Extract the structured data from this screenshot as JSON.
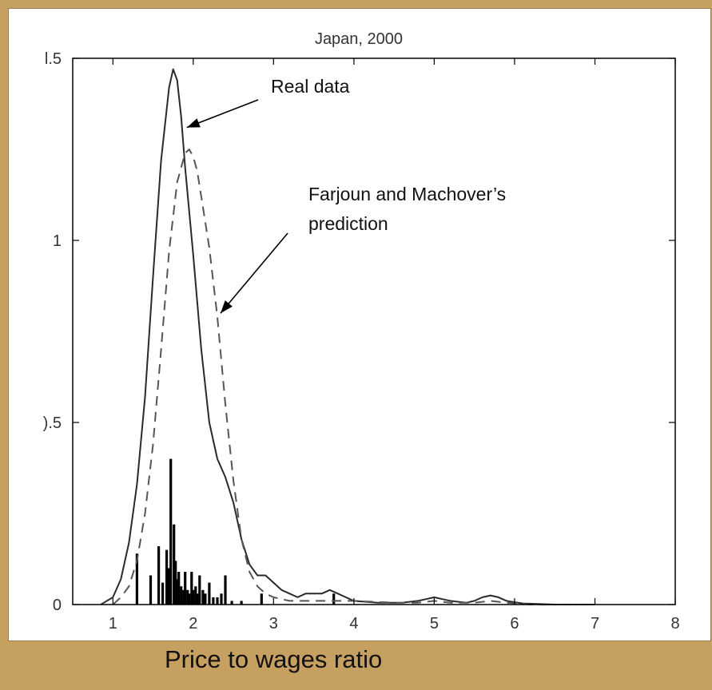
{
  "slide": {
    "background": "#c5a060",
    "caption": "Price to wages ratio"
  },
  "chart_data": {
    "type": "line",
    "title": "Japan, 2000",
    "xlabel": "",
    "ylabel": "",
    "xlim": [
      0.5,
      8
    ],
    "ylim": [
      0,
      1.5
    ],
    "x_ticks": [
      1,
      2,
      3,
      4,
      5,
      6,
      7,
      8
    ],
    "x_tick_labels": [
      "1",
      "2",
      "3",
      "4",
      "5",
      "6",
      "7",
      "8"
    ],
    "y_ticks": [
      0,
      0.5,
      1,
      1.5
    ],
    "y_tick_labels": [
      "0",
      ").5",
      "1",
      "l.5"
    ],
    "grid": false,
    "series": [
      {
        "style": "solid",
        "color": "#2a2a2a",
        "x": [
          0.85,
          1.0,
          1.1,
          1.2,
          1.3,
          1.4,
          1.5,
          1.6,
          1.7,
          1.75,
          1.8,
          1.85,
          1.9,
          2.0,
          2.1,
          2.2,
          2.3,
          2.4,
          2.5,
          2.6,
          2.7,
          2.8,
          2.9,
          3.0,
          3.1,
          3.2,
          3.3,
          3.4,
          3.5,
          3.6,
          3.7,
          3.8,
          3.9,
          4.0,
          4.3,
          4.6,
          4.8,
          4.9,
          5.0,
          5.1,
          5.2,
          5.4,
          5.5,
          5.6,
          5.7,
          5.8,
          5.9,
          6.1,
          6.5,
          7.0
        ],
        "values": [
          0.0,
          0.02,
          0.07,
          0.17,
          0.33,
          0.57,
          0.9,
          1.22,
          1.42,
          1.47,
          1.44,
          1.34,
          1.2,
          0.96,
          0.7,
          0.5,
          0.4,
          0.35,
          0.28,
          0.18,
          0.11,
          0.08,
          0.08,
          0.06,
          0.04,
          0.03,
          0.02,
          0.03,
          0.03,
          0.03,
          0.04,
          0.03,
          0.02,
          0.01,
          0.005,
          0.005,
          0.01,
          0.015,
          0.02,
          0.015,
          0.01,
          0.005,
          0.01,
          0.02,
          0.025,
          0.02,
          0.01,
          0.003,
          0.0,
          0.0
        ]
      },
      {
        "style": "dashed",
        "color": "#555555",
        "x": [
          1.0,
          1.1,
          1.2,
          1.3,
          1.4,
          1.5,
          1.6,
          1.7,
          1.8,
          1.9,
          1.95,
          2.0,
          2.05,
          2.1,
          2.2,
          2.3,
          2.4,
          2.5,
          2.6,
          2.7,
          2.8,
          2.9,
          3.0,
          3.2,
          3.4,
          3.6,
          3.8,
          4.0,
          4.5,
          4.8,
          5.0,
          5.2,
          5.5,
          5.7,
          5.9,
          6.2,
          6.6,
          7.0
        ],
        "values": [
          0.0,
          0.02,
          0.05,
          0.12,
          0.25,
          0.44,
          0.7,
          0.97,
          1.16,
          1.24,
          1.25,
          1.23,
          1.19,
          1.12,
          0.98,
          0.79,
          0.55,
          0.34,
          0.18,
          0.09,
          0.05,
          0.03,
          0.02,
          0.01,
          0.01,
          0.01,
          0.01,
          0.01,
          0.005,
          0.005,
          0.01,
          0.005,
          0.005,
          0.01,
          0.005,
          0.0,
          0.0,
          0.0
        ]
      }
    ],
    "bars": {
      "color": "#000000",
      "x": [
        1.3,
        1.47,
        1.57,
        1.62,
        1.67,
        1.7,
        1.72,
        1.76,
        1.78,
        1.8,
        1.82,
        1.85,
        1.88,
        1.9,
        1.93,
        1.95,
        1.98,
        2.0,
        2.03,
        2.05,
        2.08,
        2.12,
        2.15,
        2.2,
        2.25,
        2.3,
        2.35,
        2.4,
        2.48,
        2.6,
        2.85,
        3.75
      ],
      "values": [
        0.14,
        0.08,
        0.16,
        0.06,
        0.15,
        0.1,
        0.4,
        0.22,
        0.12,
        0.07,
        0.09,
        0.05,
        0.04,
        0.09,
        0.04,
        0.03,
        0.09,
        0.04,
        0.05,
        0.03,
        0.08,
        0.04,
        0.03,
        0.06,
        0.02,
        0.02,
        0.03,
        0.08,
        0.01,
        0.01,
        0.03,
        0.03
      ]
    },
    "annotations": [
      {
        "text": "Real data",
        "points_to": {
          "x": 1.92,
          "y": 1.31
        }
      },
      {
        "lines": [
          "Farjoun and Machover’s",
          "prediction"
        ],
        "points_to": {
          "x": 2.34,
          "y": 0.8
        }
      }
    ]
  }
}
